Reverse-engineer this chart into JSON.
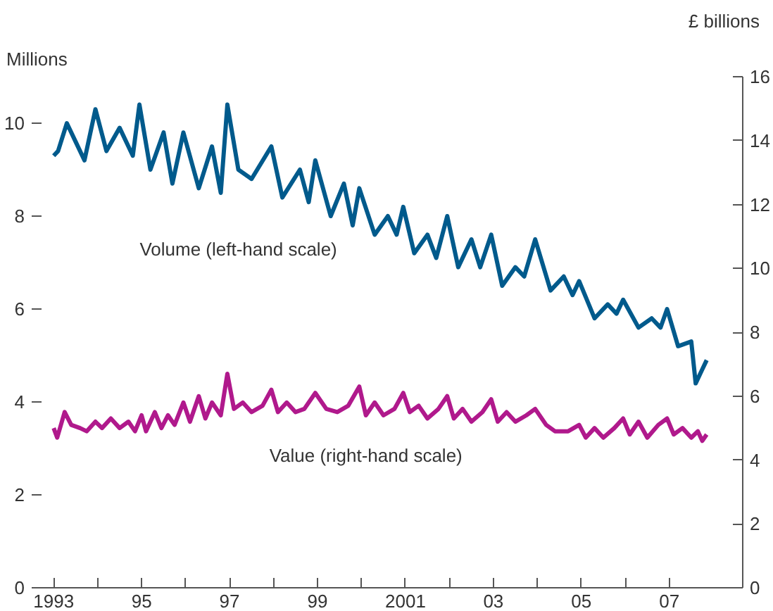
{
  "chart_data": {
    "type": "line",
    "ylabel": "Millions",
    "y2label": "£ billions",
    "xlim": [
      1992.5,
      2008.67
    ],
    "ylim": [
      0,
      11
    ],
    "y2lim": [
      0,
      16
    ],
    "xticks": [
      {
        "value": 1993,
        "label": "1993"
      },
      {
        "value": 1994,
        "label": null
      },
      {
        "value": 1995,
        "label": "95"
      },
      {
        "value": 1996,
        "label": null
      },
      {
        "value": 1997,
        "label": "97"
      },
      {
        "value": 1998,
        "label": null
      },
      {
        "value": 1999,
        "label": "99"
      },
      {
        "value": 2000,
        "label": null
      },
      {
        "value": 2001,
        "label": "2001"
      },
      {
        "value": 2002,
        "label": null
      },
      {
        "value": 2003,
        "label": "03"
      },
      {
        "value": 2004,
        "label": null
      },
      {
        "value": 2005,
        "label": "05"
      },
      {
        "value": 2006,
        "label": null
      },
      {
        "value": 2007,
        "label": "07"
      }
    ],
    "yticks": [
      0,
      2,
      4,
      6,
      8,
      10
    ],
    "y2ticks": [
      0,
      2,
      4,
      6,
      8,
      10,
      12,
      14,
      16
    ],
    "grid": false,
    "legend": false,
    "series": [
      {
        "name": "Volume (left-hand scale)",
        "color": "#005a8c",
        "x": [
          1993.0,
          1993.1,
          1993.3,
          1993.5,
          1993.7,
          1993.95,
          1994.2,
          1994.5,
          1994.8,
          1994.95,
          1995.2,
          1995.5,
          1995.7,
          1995.95,
          1996.3,
          1996.6,
          1996.8,
          1996.95,
          1997.2,
          1997.5,
          1997.95,
          1998.2,
          1998.6,
          1998.8,
          1998.95,
          1999.3,
          1999.6,
          1999.8,
          1999.95,
          2000.3,
          2000.6,
          2000.8,
          2000.95,
          2001.2,
          2001.5,
          2001.7,
          2001.95,
          2002.2,
          2002.5,
          2002.7,
          2002.95,
          2003.2,
          2003.5,
          2003.7,
          2003.95,
          2004.3,
          2004.6,
          2004.8,
          2004.95,
          2005.3,
          2005.6,
          2005.8,
          2005.95,
          2006.3,
          2006.6,
          2006.8,
          2006.95,
          2007.2,
          2007.5,
          2007.6,
          2007.75,
          2007.85
        ],
        "values": [
          9.3,
          9.4,
          10.0,
          9.6,
          9.2,
          10.3,
          9.4,
          9.9,
          9.3,
          10.4,
          9.0,
          9.8,
          8.7,
          9.8,
          8.6,
          9.5,
          8.5,
          10.4,
          9.0,
          8.8,
          9.5,
          8.4,
          9.0,
          8.3,
          9.2,
          8.0,
          8.7,
          7.8,
          8.6,
          7.6,
          8.0,
          7.6,
          8.2,
          7.2,
          7.6,
          7.1,
          8.0,
          6.9,
          7.5,
          6.9,
          7.6,
          6.5,
          6.9,
          6.7,
          7.5,
          6.4,
          6.7,
          6.3,
          6.6,
          5.8,
          6.1,
          5.9,
          6.2,
          5.6,
          5.8,
          5.6,
          6.0,
          5.2,
          5.3,
          4.4,
          4.7,
          4.9
        ]
      },
      {
        "name": "Value (right-hand scale)",
        "color": "#b0198c",
        "axis": "y2",
        "x": [
          1993.0,
          1993.08,
          1993.25,
          1993.4,
          1993.6,
          1993.75,
          1993.95,
          1994.1,
          1994.3,
          1994.5,
          1994.7,
          1994.85,
          1995.0,
          1995.1,
          1995.3,
          1995.45,
          1995.6,
          1995.75,
          1995.95,
          1996.1,
          1996.3,
          1996.45,
          1996.6,
          1996.8,
          1996.95,
          1997.1,
          1997.3,
          1997.5,
          1997.75,
          1997.95,
          1998.1,
          1998.3,
          1998.5,
          1998.7,
          1998.95,
          1999.2,
          1999.45,
          1999.7,
          1999.95,
          2000.1,
          2000.3,
          2000.5,
          2000.75,
          2000.95,
          2001.1,
          2001.3,
          2001.5,
          2001.75,
          2001.95,
          2002.1,
          2002.3,
          2002.5,
          2002.75,
          2002.95,
          2003.1,
          2003.3,
          2003.5,
          2003.75,
          2003.95,
          2004.2,
          2004.4,
          2004.7,
          2004.95,
          2005.1,
          2005.3,
          2005.5,
          2005.75,
          2005.95,
          2006.1,
          2006.3,
          2006.5,
          2006.75,
          2006.95,
          2007.1,
          2007.3,
          2007.5,
          2007.65,
          2007.75,
          2007.85
        ],
        "values": [
          5.0,
          4.7,
          5.5,
          5.1,
          5.0,
          4.9,
          5.2,
          5.0,
          5.3,
          5.0,
          5.2,
          4.9,
          5.4,
          4.9,
          5.5,
          5.0,
          5.4,
          5.1,
          5.8,
          5.2,
          6.0,
          5.3,
          5.8,
          5.4,
          6.7,
          5.6,
          5.8,
          5.5,
          5.7,
          6.2,
          5.5,
          5.8,
          5.5,
          5.6,
          6.1,
          5.6,
          5.5,
          5.7,
          6.3,
          5.4,
          5.8,
          5.4,
          5.6,
          6.1,
          5.5,
          5.7,
          5.3,
          5.6,
          6.0,
          5.3,
          5.6,
          5.2,
          5.5,
          5.9,
          5.2,
          5.5,
          5.2,
          5.4,
          5.6,
          5.1,
          4.9,
          4.9,
          5.1,
          4.7,
          5.0,
          4.7,
          5.0,
          5.3,
          4.8,
          5.2,
          4.7,
          5.1,
          5.3,
          4.8,
          5.0,
          4.7,
          4.9,
          4.6,
          4.8
        ]
      }
    ]
  }
}
